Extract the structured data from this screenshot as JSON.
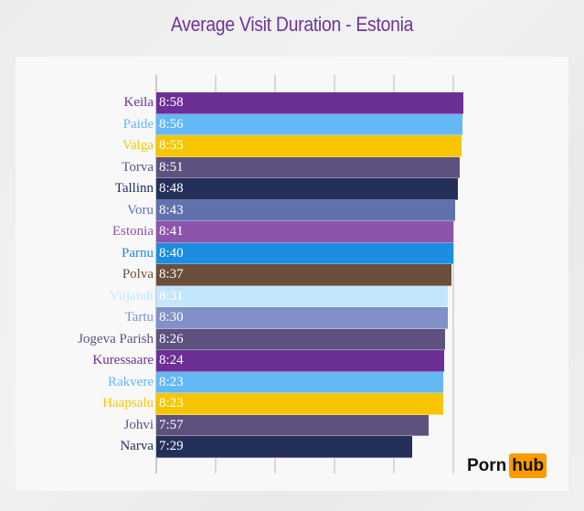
{
  "title": "Average Visit Duration - Estonia",
  "brand": {
    "part1": "Porn",
    "part2": "hub",
    "accent": "#ff9900"
  },
  "chart_data": {
    "type": "bar",
    "orientation": "horizontal",
    "title": "Average Visit Duration - Estonia",
    "xlabel": "",
    "ylabel": "",
    "unit": "minutes:seconds",
    "grid": true,
    "legend": "none",
    "categories": [
      "Keila",
      "Paide",
      "Valga",
      "Torva",
      "Tallinn",
      "Voru",
      "Estonia",
      "Parnu",
      "Polva",
      "Viljandi",
      "Tartu",
      "Jogeva Parish",
      "Kuressaare",
      "Rakvere",
      "Haapsalu",
      "Johvi",
      "Narva"
    ],
    "labels": [
      "8:58",
      "8:56",
      "8:55",
      "8:51",
      "8:48",
      "8:43",
      "8:41",
      "8:40",
      "8:37",
      "8:31",
      "8:30",
      "8:26",
      "8:24",
      "8:23",
      "8:23",
      "7:57",
      "7:29"
    ],
    "values_seconds": [
      538,
      536,
      535,
      531,
      528,
      523,
      521,
      520,
      517,
      511,
      510,
      506,
      504,
      503,
      503,
      477,
      449
    ],
    "colors": [
      "#6c2f96",
      "#63b8f6",
      "#f7c600",
      "#5e5180",
      "#25305a",
      "#6071ad",
      "#8d54ab",
      "#1c8de0",
      "#6b4f3c",
      "#c3e6fd",
      "#8190c6",
      "#5e5180",
      "#6c2f96",
      "#63b8f6",
      "#f7c600",
      "#5e5180",
      "#25305a"
    ],
    "label_colors": [
      "#6c2f96",
      "#63b8f6",
      "#f7c600",
      "#5e5180",
      "#25305a",
      "#6071ad",
      "#8d54ab",
      "#1c8de0",
      "#6b4f3c",
      "#c3e6fd",
      "#8190c6",
      "#5e5180",
      "#6c2f96",
      "#63b8f6",
      "#f7c600",
      "#5e5180",
      "#25305a"
    ]
  }
}
